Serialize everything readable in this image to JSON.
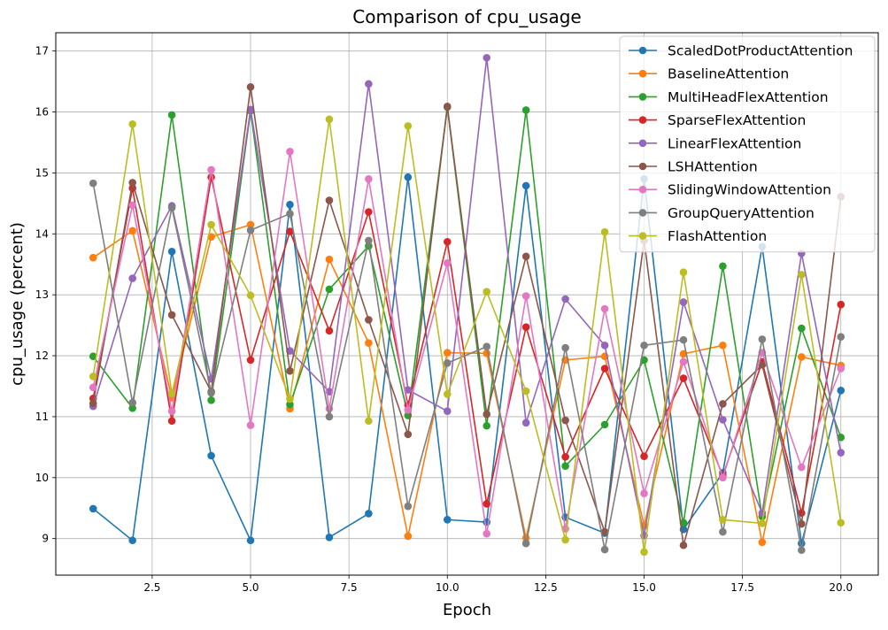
{
  "chart_data": {
    "type": "line",
    "title": "Comparison of cpu_usage",
    "xlabel": "Epoch",
    "ylabel": "cpu_usage (percent)",
    "xlim": [
      0.05,
      20.95
    ],
    "ylim": [
      8.4,
      17.3
    ],
    "xticks": [
      2.5,
      5.0,
      7.5,
      10.0,
      12.5,
      15.0,
      17.5,
      20.0
    ],
    "xtick_labels": [
      "2.5",
      "5.0",
      "7.5",
      "10.0",
      "12.5",
      "15.0",
      "17.5",
      "20.0"
    ],
    "yticks": [
      9,
      10,
      11,
      12,
      13,
      14,
      15,
      16,
      17
    ],
    "ytick_labels": [
      "9",
      "10",
      "11",
      "12",
      "13",
      "14",
      "15",
      "16",
      "17"
    ],
    "grid": true,
    "legend_position": "top-right",
    "x": [
      1,
      2,
      3,
      4,
      5,
      6,
      7,
      8,
      9,
      10,
      11,
      12,
      13,
      14,
      15,
      16,
      17,
      18,
      19,
      20
    ],
    "series": [
      {
        "name": "ScaledDotProductAttention",
        "color": "#1f77b4",
        "values": [
          9.49,
          8.97,
          13.71,
          10.36,
          8.97,
          14.48,
          9.02,
          9.41,
          14.93,
          9.31,
          9.27,
          14.79,
          9.35,
          9.09,
          14.9,
          9.15,
          10.08,
          13.79,
          8.92,
          11.43
        ]
      },
      {
        "name": "BaselineAttention",
        "color": "#ff7f0e",
        "values": [
          13.61,
          14.05,
          11.31,
          13.95,
          14.15,
          11.13,
          13.58,
          12.21,
          9.04,
          12.05,
          12.04,
          9.01,
          11.93,
          11.99,
          9.21,
          12.03,
          12.17,
          8.94,
          11.98,
          11.84
        ]
      },
      {
        "name": "MultiHeadFlexAttention",
        "color": "#2ca02c",
        "values": [
          11.99,
          11.14,
          15.95,
          11.27,
          16.02,
          11.2,
          13.09,
          13.8,
          11.02,
          16.08,
          10.85,
          16.03,
          10.19,
          10.87,
          11.93,
          9.26,
          13.47,
          9.36,
          12.45,
          10.66
        ]
      },
      {
        "name": "SparseFlexAttention",
        "color": "#d62728",
        "values": [
          11.3,
          14.75,
          10.93,
          14.93,
          11.93,
          14.04,
          12.41,
          14.36,
          11.19,
          13.87,
          9.57,
          12.47,
          10.34,
          11.79,
          10.35,
          11.63,
          10.03,
          11.9,
          9.42,
          12.84
        ]
      },
      {
        "name": "LinearFlexAttention",
        "color": "#9467bd",
        "values": [
          11.17,
          13.27,
          14.46,
          11.62,
          16.04,
          12.08,
          11.41,
          16.46,
          11.44,
          11.09,
          16.89,
          10.9,
          12.93,
          12.17,
          9.05,
          12.88,
          10.95,
          9.42,
          13.68,
          10.41
        ]
      },
      {
        "name": "LSHAttention",
        "color": "#8c564b",
        "values": [
          11.22,
          14.84,
          12.67,
          11.41,
          16.41,
          11.75,
          14.55,
          12.59,
          10.71,
          16.09,
          11.04,
          13.63,
          10.94,
          9.11,
          13.89,
          8.89,
          11.21,
          11.85,
          9.24,
          14.61
        ]
      },
      {
        "name": "SlidingWindowAttention",
        "color": "#e377c2",
        "values": [
          11.48,
          14.47,
          11.09,
          15.05,
          10.86,
          15.35,
          11.13,
          14.9,
          11.11,
          13.52,
          9.08,
          12.98,
          9.16,
          12.77,
          9.74,
          11.9,
          10.0,
          12.05,
          10.17,
          11.79
        ]
      },
      {
        "name": "GroupQueryAttention",
        "color": "#7f7f7f",
        "values": [
          14.83,
          11.23,
          14.43,
          11.39,
          14.06,
          14.33,
          11.0,
          13.89,
          9.53,
          11.88,
          12.15,
          8.92,
          12.13,
          8.82,
          12.17,
          12.26,
          9.11,
          12.27,
          8.81,
          12.31
        ]
      },
      {
        "name": "FlashAttention",
        "color": "#bcbd22",
        "values": [
          11.66,
          15.8,
          11.38,
          14.15,
          12.99,
          11.29,
          15.88,
          10.93,
          15.77,
          11.37,
          13.05,
          11.42,
          8.98,
          14.03,
          8.78,
          13.37,
          9.31,
          9.25,
          13.33,
          9.26
        ]
      }
    ]
  }
}
